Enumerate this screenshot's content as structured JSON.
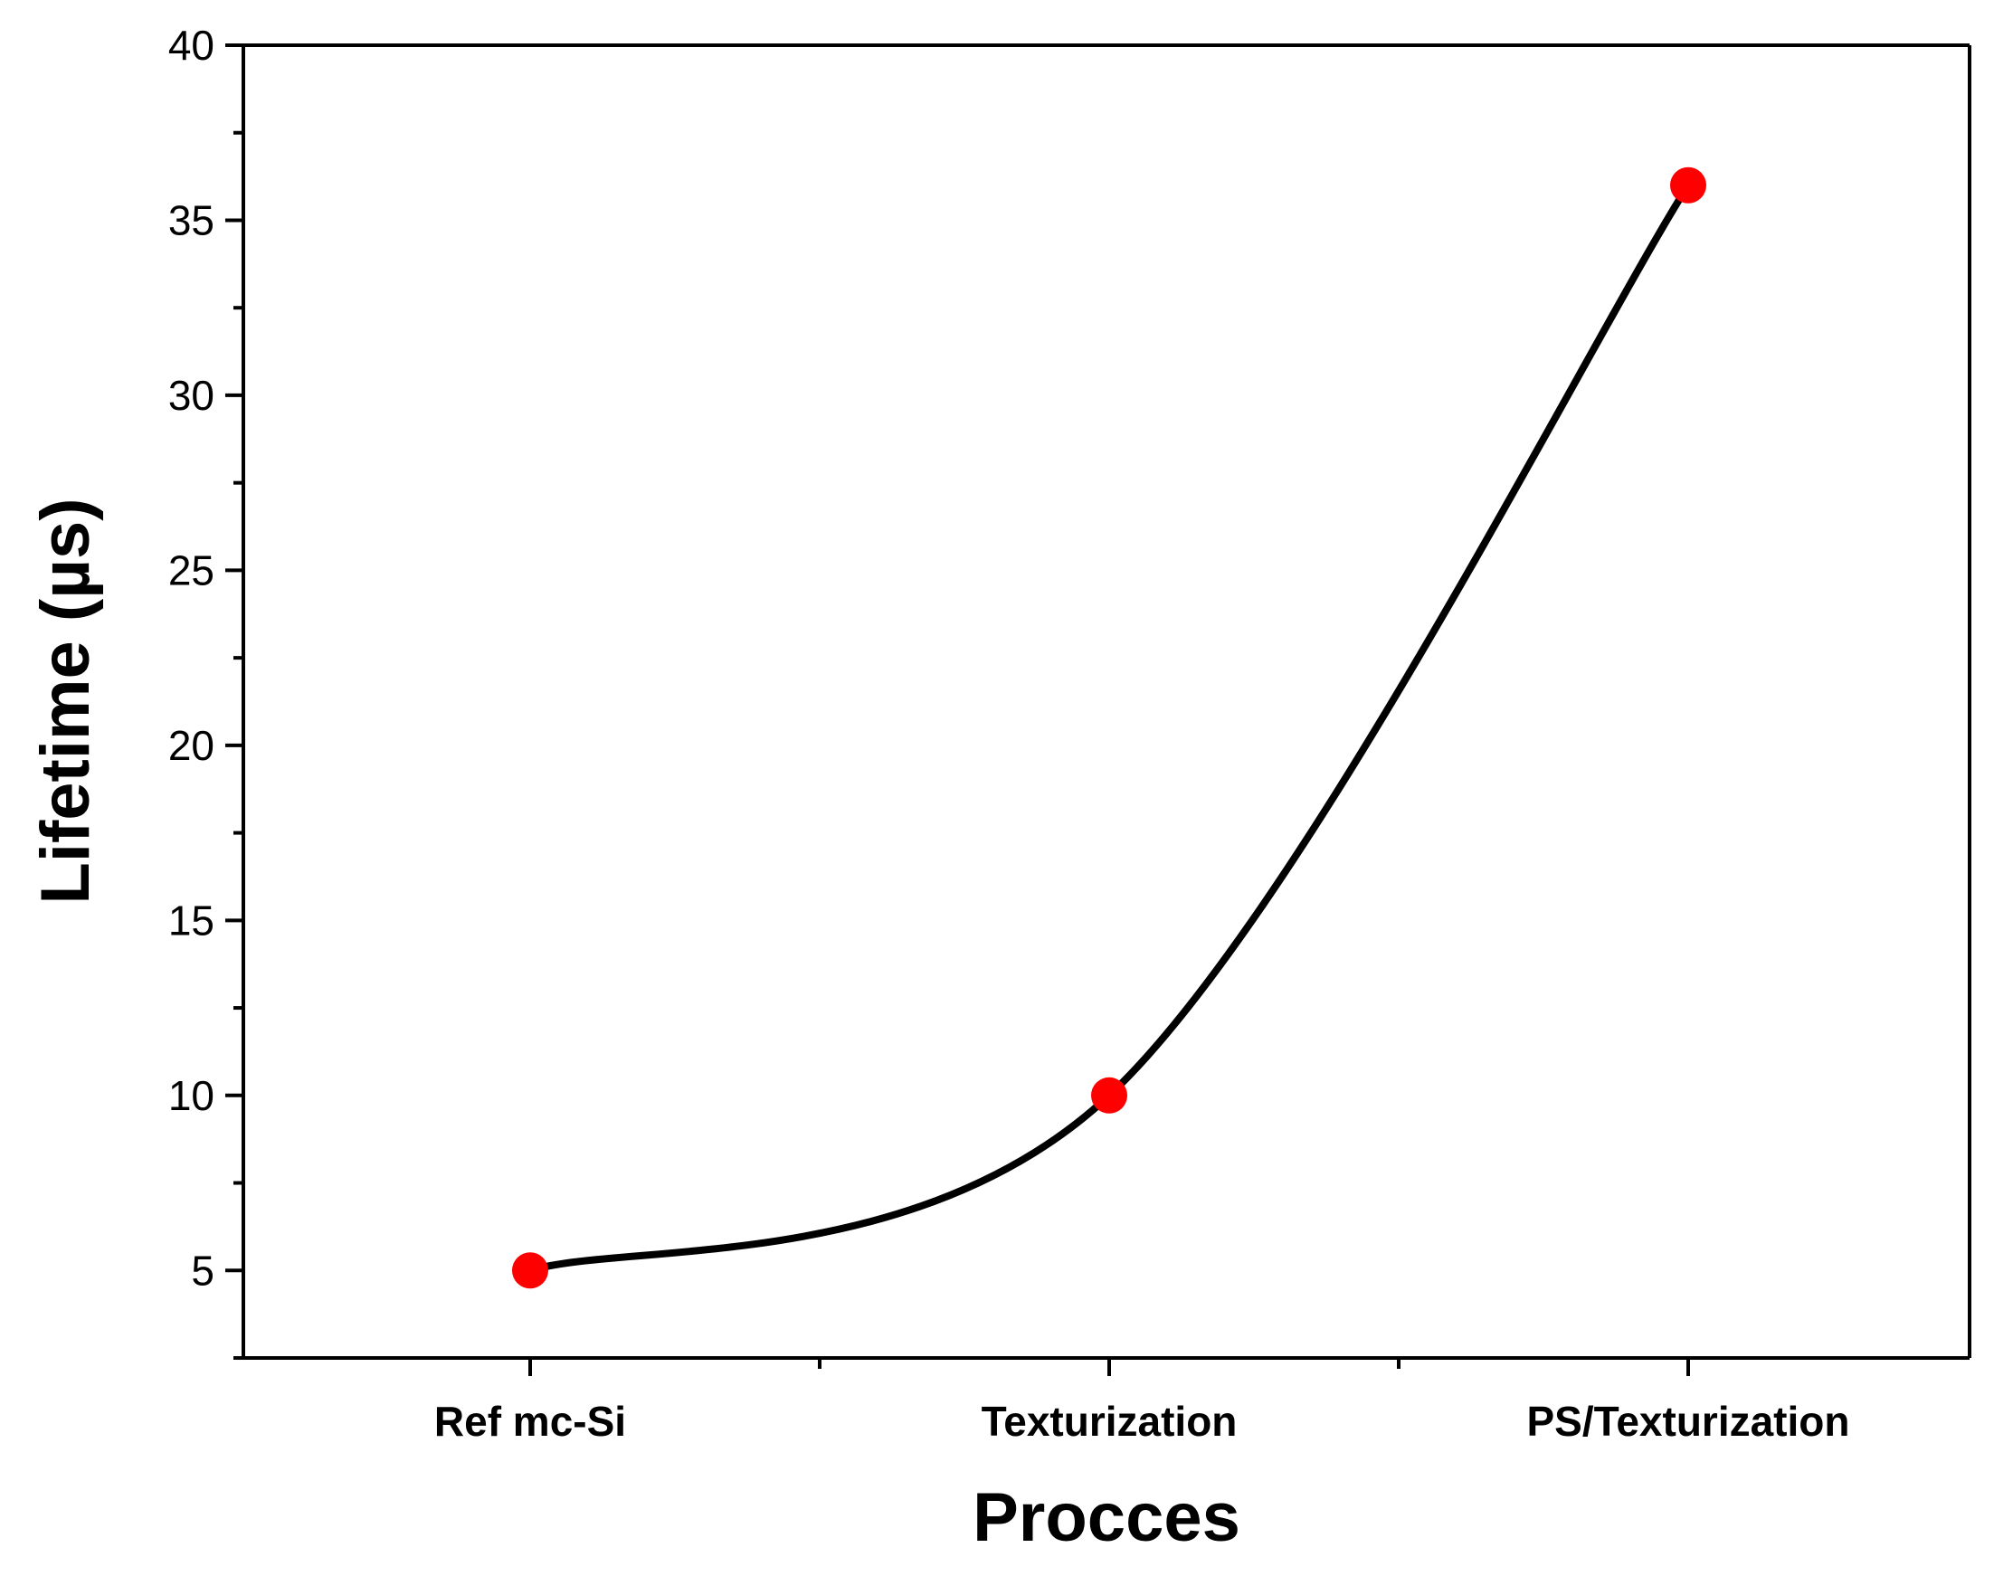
{
  "chart_data": {
    "type": "line",
    "title": "",
    "xlabel": "Procces",
    "ylabel": "Lifetime (µs)",
    "categories": [
      "Ref mc-Si",
      "Texturization",
      "PS/Texturization"
    ],
    "series": [
      {
        "values": [
          5,
          10,
          36
        ],
        "line_color": "#000000",
        "marker_color": "#ff0000",
        "line_style": "smooth"
      }
    ],
    "ylim": [
      2.5,
      40
    ],
    "yticks": [
      5,
      10,
      15,
      20,
      25,
      30,
      35,
      40
    ],
    "grid": false,
    "legend": false
  }
}
